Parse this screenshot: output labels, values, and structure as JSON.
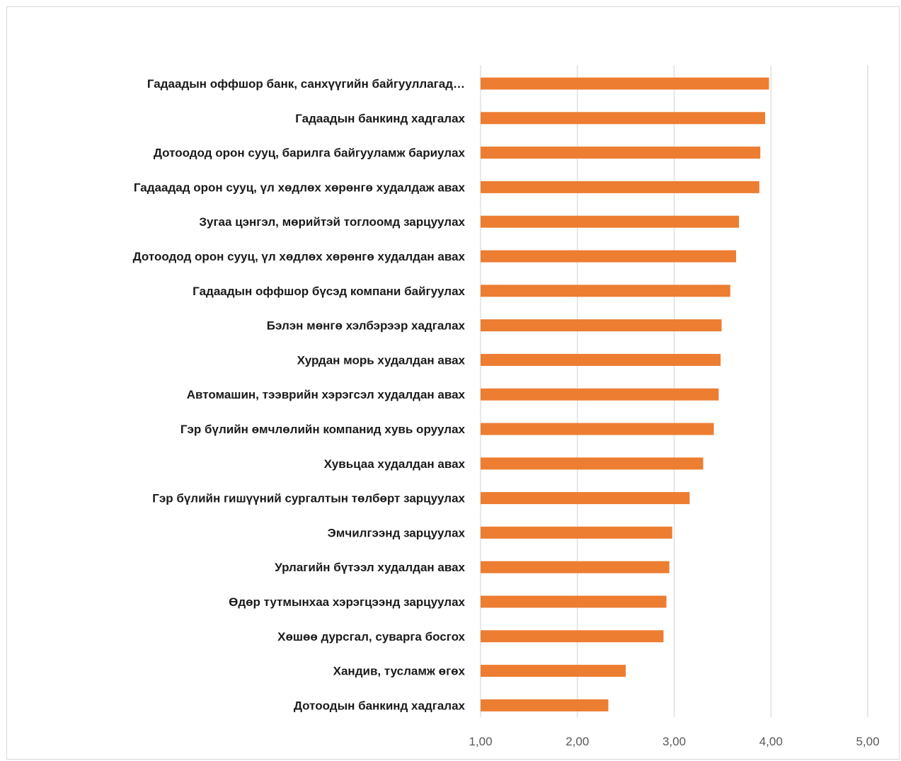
{
  "chart_data": {
    "type": "bar",
    "orientation": "horizontal",
    "categories": [
      "Гадаадын оффшор банк, санхүүгийн байгууллагад…",
      "Гадаадын банкинд хадгалах",
      "Дотоодод орон сууц, барилга байгууламж бариулах",
      "Гадаадад орон сууц, үл хөдлөх хөрөнгө худалдаж авах",
      "Зугаа цэнгэл, мөрийтэй тоглоомд зарцуулах",
      "Дотоодод орон сууц, үл хөдлөх хөрөнгө худалдан авах",
      "Гадаадын оффшор бүсэд компани байгуулах",
      "Бэлэн мөнгө хэлбэрээр хадгалах",
      "Хурдан морь худалдан авах",
      "Автомашин, тээврийн хэрэгсэл худалдан авах",
      "Гэр бүлийн өмчлөлийн компанид хувь оруулах",
      "Хувьцаа худалдан авах",
      "Гэр бүлийн гишүүний сургалтын төлбөрт зарцуулах",
      "Эмчилгээнд зарцуулах",
      "Урлагийн бүтээл худалдан авах",
      "Өдөр тутмынхаа хэрэгцээнд зарцуулах",
      "Хөшөө дурсгал, суварга босгох",
      "Хандив, тусламж өгөх",
      "Дотоодын банкинд хадгалах"
    ],
    "values": [
      3.98,
      3.94,
      3.89,
      3.88,
      3.67,
      3.64,
      3.58,
      3.49,
      3.48,
      3.46,
      3.41,
      3.3,
      3.16,
      2.98,
      2.95,
      2.92,
      2.89,
      2.5,
      2.32
    ],
    "xlim": [
      1,
      5
    ],
    "xticks": [
      1,
      2,
      3,
      4,
      5
    ],
    "xtick_labels": [
      "1,00",
      "2,00",
      "3,00",
      "4,00",
      "5,00"
    ],
    "bar_color": "#ed7d31",
    "grid": true,
    "title": "",
    "xlabel": "",
    "ylabel": ""
  }
}
